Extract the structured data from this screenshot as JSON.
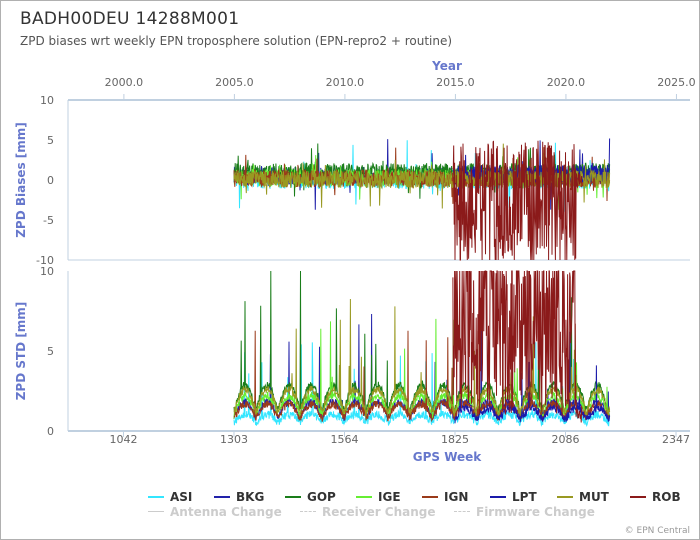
{
  "title": "BADH00DEU 14288M001",
  "subtitle": "ZPD biases wrt weekly EPN troposphere solution (EPN-repro2 + routine)",
  "credits": "© EPN Central",
  "chart_data": {
    "type": "line",
    "top_axis": {
      "label": "Year",
      "ticks": [
        "2000.0",
        "2005.0",
        "2010.0",
        "2015.0",
        "2020.0",
        "2025.0"
      ]
    },
    "bottom_axis": {
      "label": "GPS Week",
      "ticks": [
        1042,
        1303,
        1564,
        1825,
        2086,
        2347
      ]
    },
    "panels": [
      {
        "ylabel": "ZPD Biases [mm]",
        "ylim": [
          -10,
          10
        ],
        "ticks": [
          10,
          5,
          0,
          -5,
          -10
        ]
      },
      {
        "ylabel": "ZPD STD [mm]",
        "ylim": [
          0,
          10
        ],
        "ticks": [
          10,
          5,
          0
        ]
      }
    ],
    "xlim": [
      911,
      2380
    ],
    "series": [
      {
        "name": "ASI",
        "color": "#33e6ff",
        "weeks": [
          1303,
          2190
        ],
        "bias_level": 0.0,
        "std_level": 0.6
      },
      {
        "name": "BKG",
        "color": "#2222aa",
        "weeks": [
          1303,
          2190
        ],
        "bias_level": 0.5,
        "std_level": 1.2
      },
      {
        "name": "GOP",
        "color": "#1a7d1a",
        "weeks": [
          1303,
          2190
        ],
        "bias_level": 1.0,
        "std_level": 2.0
      },
      {
        "name": "IGE",
        "color": "#66ee33",
        "weeks": [
          1303,
          2190
        ],
        "bias_level": 0.3,
        "std_level": 1.5
      },
      {
        "name": "IGN",
        "color": "#9a3a1a",
        "weeks": [
          1303,
          2190
        ],
        "bias_level": 0.2,
        "std_level": 1.1
      },
      {
        "name": "LPT",
        "color": "#1a1aaa",
        "weeks": [
          1825,
          2190
        ],
        "bias_level": 0.8,
        "std_level": 0.9
      },
      {
        "name": "MUT",
        "color": "#999922",
        "weeks": [
          1303,
          2190
        ],
        "bias_level": 0.1,
        "std_level": 1.8
      },
      {
        "name": "ROB",
        "color": "#8b1a1a",
        "weeks": [
          1820,
          2125
        ],
        "bias_level": -3.0,
        "std_level": 5.0
      }
    ],
    "events": [
      {
        "name": "Antenna Change",
        "style": "solid"
      },
      {
        "name": "Receiver Change",
        "style": "dashed"
      },
      {
        "name": "Firmware Change",
        "style": "dashed"
      }
    ]
  }
}
